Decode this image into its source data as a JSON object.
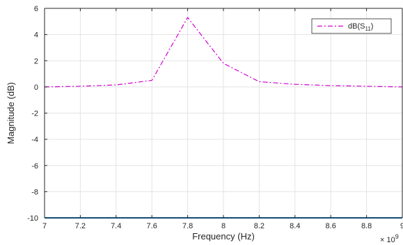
{
  "chart_data": {
    "type": "line",
    "title": "",
    "xlabel": "Frequency (Hz)",
    "ylabel": "Magnitude (dB)",
    "x_multiplier_label": "× 10",
    "x_multiplier_exponent": "9",
    "xlim": [
      7,
      9
    ],
    "ylim": [
      -10,
      6
    ],
    "xticks": [
      "7",
      "7.2",
      "7.4",
      "7.6",
      "7.8",
      "8",
      "8.2",
      "8.4",
      "8.6",
      "8.8",
      "9"
    ],
    "yticks": [
      "6",
      "4",
      "2",
      "0",
      "-2",
      "-4",
      "-6",
      "-8",
      "-10"
    ],
    "grid": true,
    "legend_position": "top-right",
    "series": [
      {
        "name": "dB(S11)",
        "legend_label": "dB(S",
        "legend_subscript": "11",
        "legend_suffix": ")",
        "color": "#d100d1",
        "style": "dash-dot",
        "x": [
          7.0,
          7.2,
          7.4,
          7.6,
          7.8,
          8.0,
          8.2,
          8.4,
          8.6,
          8.8,
          9.0
        ],
        "y": [
          0.0,
          0.05,
          0.15,
          0.5,
          5.3,
          1.8,
          0.4,
          0.2,
          0.1,
          0.05,
          0.0
        ]
      }
    ],
    "baseline": {
      "y": -10,
      "color": "#0072bd"
    },
    "colors": {
      "axis": "#262626",
      "grid": "#e3e3e3"
    }
  }
}
